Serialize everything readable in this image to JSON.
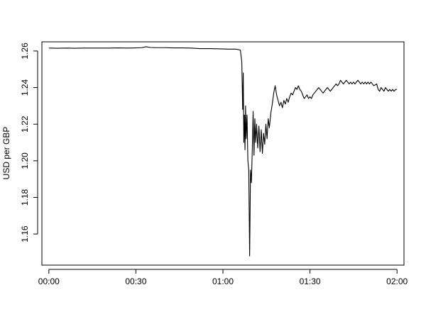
{
  "chart_data": {
    "type": "line",
    "title": "",
    "xlabel": "",
    "ylabel": "USD per GBP",
    "x_unit": "minutes",
    "xlim": [
      -2.4,
      122.4
    ],
    "ylim": [
      1.143,
      1.265
    ],
    "x_ticks": [
      {
        "value": 0,
        "label": "00:00"
      },
      {
        "value": 30,
        "label": "00:30"
      },
      {
        "value": 60,
        "label": "01:00"
      },
      {
        "value": 90,
        "label": "01:30"
      },
      {
        "value": 120,
        "label": "02:00"
      }
    ],
    "y_ticks": [
      {
        "value": 1.16,
        "label": "1.16"
      },
      {
        "value": 1.18,
        "label": "1.18"
      },
      {
        "value": 1.2,
        "label": "1.20"
      },
      {
        "value": 1.22,
        "label": "1.22"
      },
      {
        "value": 1.24,
        "label": "1.24"
      },
      {
        "value": 1.26,
        "label": "1.26"
      }
    ],
    "grid": false,
    "line_color": "#000000",
    "series": [
      {
        "points": [
          [
            0,
            1.2616
          ],
          [
            3,
            1.2615
          ],
          [
            6,
            1.2616
          ],
          [
            9,
            1.2615
          ],
          [
            12,
            1.2616
          ],
          [
            15,
            1.2616
          ],
          [
            18,
            1.2616
          ],
          [
            21,
            1.2616
          ],
          [
            24,
            1.2617
          ],
          [
            27,
            1.2616
          ],
          [
            30,
            1.2617
          ],
          [
            32,
            1.2618
          ],
          [
            33.5,
            1.2623
          ],
          [
            35,
            1.2619
          ],
          [
            37,
            1.2618
          ],
          [
            40,
            1.2618
          ],
          [
            43,
            1.2617
          ],
          [
            46,
            1.2617
          ],
          [
            49,
            1.2616
          ],
          [
            52,
            1.2613
          ],
          [
            55,
            1.2613
          ],
          [
            58,
            1.2612
          ],
          [
            62,
            1.261
          ],
          [
            64.5,
            1.261
          ],
          [
            66,
            1.2605
          ],
          [
            66.5,
            1.254
          ],
          [
            66.8,
            1.228
          ],
          [
            67.0,
            1.248
          ],
          [
            67.2,
            1.21
          ],
          [
            67.4,
            1.225
          ],
          [
            67.6,
            1.206
          ],
          [
            67.8,
            1.23
          ],
          [
            68.0,
            1.212
          ],
          [
            68.3,
            1.225
          ],
          [
            68.6,
            1.2
          ],
          [
            68.9,
            1.195
          ],
          [
            69.2,
            1.148
          ],
          [
            69.5,
            1.195
          ],
          [
            69.8,
            1.188
          ],
          [
            70.1,
            1.205
          ],
          [
            70.4,
            1.227
          ],
          [
            70.7,
            1.203
          ],
          [
            71.0,
            1.223
          ],
          [
            71.3,
            1.21
          ],
          [
            71.6,
            1.22
          ],
          [
            72.0,
            1.207
          ],
          [
            72.4,
            1.219
          ],
          [
            72.8,
            1.205
          ],
          [
            73.2,
            1.217
          ],
          [
            73.6,
            1.204
          ],
          [
            74.0,
            1.215
          ],
          [
            74.4,
            1.209
          ],
          [
            74.8,
            1.22
          ],
          [
            75.2,
            1.212
          ],
          [
            75.6,
            1.223
          ],
          [
            76.0,
            1.218
          ],
          [
            76.5,
            1.226
          ],
          [
            77.0,
            1.231
          ],
          [
            77.5,
            1.237
          ],
          [
            78.0,
            1.241
          ],
          [
            78.5,
            1.236
          ],
          [
            79.0,
            1.233
          ],
          [
            79.5,
            1.23
          ],
          [
            80.0,
            1.232
          ],
          [
            80.5,
            1.229
          ],
          [
            81.0,
            1.233
          ],
          [
            81.5,
            1.231
          ],
          [
            82.0,
            1.234
          ],
          [
            82.5,
            1.232
          ],
          [
            83.0,
            1.235
          ],
          [
            83.5,
            1.237
          ],
          [
            84.0,
            1.236
          ],
          [
            84.5,
            1.238
          ],
          [
            85.0,
            1.24
          ],
          [
            85.5,
            1.239
          ],
          [
            86.0,
            1.241
          ],
          [
            86.5,
            1.239
          ],
          [
            87.0,
            1.238
          ],
          [
            87.5,
            1.236
          ],
          [
            88.0,
            1.234
          ],
          [
            88.5,
            1.235
          ],
          [
            89.0,
            1.236
          ],
          [
            89.5,
            1.234
          ],
          [
            90.0,
            1.235
          ],
          [
            90.5,
            1.234
          ],
          [
            91.0,
            1.236
          ],
          [
            91.5,
            1.237
          ],
          [
            92.0,
            1.238
          ],
          [
            92.5,
            1.239
          ],
          [
            93.0,
            1.24
          ],
          [
            93.5,
            1.239
          ],
          [
            94.0,
            1.238
          ],
          [
            94.5,
            1.237
          ],
          [
            95.0,
            1.238
          ],
          [
            95.5,
            1.239
          ],
          [
            96.0,
            1.24
          ],
          [
            96.5,
            1.239
          ],
          [
            97.0,
            1.238
          ],
          [
            97.5,
            1.239
          ],
          [
            98.0,
            1.24
          ],
          [
            98.5,
            1.241
          ],
          [
            99.0,
            1.242
          ],
          [
            99.5,
            1.241
          ],
          [
            100.0,
            1.242
          ],
          [
            100.5,
            1.244
          ],
          [
            101.0,
            1.243
          ],
          [
            101.5,
            1.242
          ],
          [
            102.0,
            1.243
          ],
          [
            102.5,
            1.244
          ],
          [
            103.0,
            1.243
          ],
          [
            103.5,
            1.242
          ],
          [
            104.0,
            1.243
          ],
          [
            104.5,
            1.242
          ],
          [
            105.0,
            1.243
          ],
          [
            105.5,
            1.242
          ],
          [
            106.0,
            1.243
          ],
          [
            106.5,
            1.244
          ],
          [
            107.0,
            1.243
          ],
          [
            107.5,
            1.242
          ],
          [
            108.0,
            1.243
          ],
          [
            108.5,
            1.242
          ],
          [
            109.0,
            1.243
          ],
          [
            109.5,
            1.242
          ],
          [
            110.0,
            1.243
          ],
          [
            110.5,
            1.242
          ],
          [
            111.0,
            1.243
          ],
          [
            112.0,
            1.241
          ],
          [
            113.0,
            1.242
          ],
          [
            113.5,
            1.239
          ],
          [
            114.0,
            1.238
          ],
          [
            114.5,
            1.24
          ],
          [
            115.0,
            1.239
          ],
          [
            115.5,
            1.238
          ],
          [
            116.0,
            1.24
          ],
          [
            116.5,
            1.239
          ],
          [
            117.0,
            1.238
          ],
          [
            117.5,
            1.239
          ],
          [
            118.0,
            1.238
          ],
          [
            118.5,
            1.239
          ],
          [
            119.0,
            1.238
          ],
          [
            119.5,
            1.239
          ],
          [
            120.0,
            1.239
          ]
        ]
      }
    ]
  }
}
